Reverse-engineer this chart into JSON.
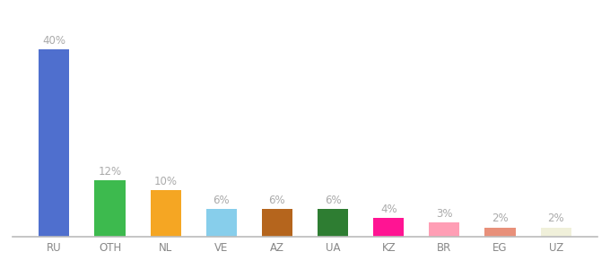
{
  "categories": [
    "RU",
    "OTH",
    "NL",
    "VE",
    "AZ",
    "UA",
    "KZ",
    "BR",
    "EG",
    "UZ"
  ],
  "values": [
    40,
    12,
    10,
    6,
    6,
    6,
    4,
    3,
    2,
    2
  ],
  "colors": [
    "#4f6fce",
    "#3dba4e",
    "#f5a623",
    "#87ceeb",
    "#b5651d",
    "#2e7d32",
    "#ff1493",
    "#ff9eb5",
    "#e8907a",
    "#f0f0da"
  ],
  "ylim": [
    0,
    46
  ],
  "background_color": "#ffffff",
  "label_color": "#aaaaaa",
  "label_fontsize": 8.5,
  "bar_width": 0.55,
  "tick_color": "#888888",
  "tick_fontsize": 8.5
}
